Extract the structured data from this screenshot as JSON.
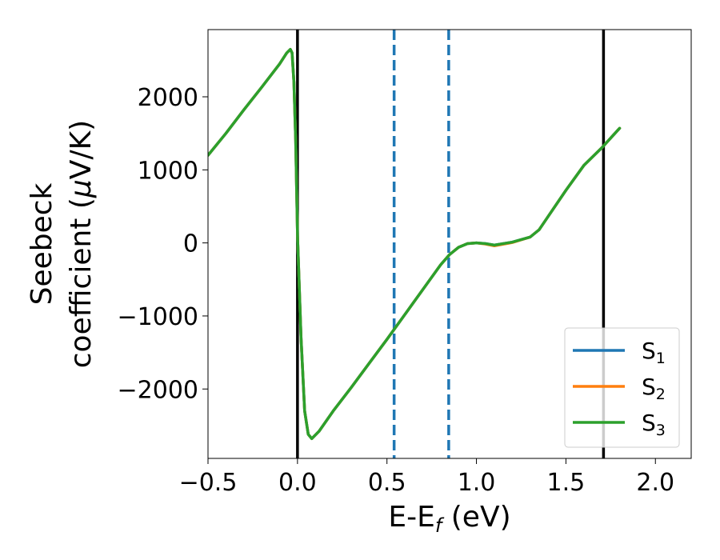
{
  "chart_data": {
    "type": "line",
    "xlabel": "E-E",
    "xlabel_sub": "f",
    "xlabel_unit": " (eV)",
    "ylabel_line1": "Seebeck",
    "ylabel_line2_pre": "coefficient  (",
    "ylabel_line2_mu": "μ",
    "ylabel_line2_post": "V/K)",
    "xlim": [
      -0.5,
      2.2
    ],
    "ylim": [
      -2950,
      2920
    ],
    "xticks": [
      -0.5,
      0.0,
      0.5,
      1.0,
      1.5,
      2.0
    ],
    "xtick_labels": [
      "−0.5",
      "0.0",
      "0.5",
      "1.0",
      "1.5",
      "2.0"
    ],
    "yticks": [
      -2000,
      -1000,
      0,
      1000,
      2000
    ],
    "ytick_labels": [
      "−2000",
      "−1000",
      "0",
      "1000",
      "2000"
    ],
    "grid": false,
    "legend_position": "lower-right",
    "series": [
      {
        "name": "S",
        "sub": "1",
        "color": "#1f77b4",
        "x": [
          -0.5,
          -0.4,
          -0.3,
          -0.2,
          -0.1,
          -0.06,
          -0.04,
          -0.03,
          -0.02,
          -0.01,
          0.0,
          0.02,
          0.04,
          0.06,
          0.08,
          0.12,
          0.2,
          0.3,
          0.4,
          0.5,
          0.6,
          0.7,
          0.8,
          0.85,
          0.9,
          0.95,
          1.0,
          1.05,
          1.1,
          1.2,
          1.3,
          1.35,
          1.4,
          1.5,
          1.6,
          1.7,
          1.8
        ],
        "y": [
          1200,
          1500,
          1820,
          2130,
          2450,
          2600,
          2650,
          2600,
          2200,
          1400,
          100,
          -1300,
          -2300,
          -2620,
          -2680,
          -2580,
          -2300,
          -1980,
          -1650,
          -1320,
          -980,
          -640,
          -300,
          -160,
          -60,
          -10,
          0,
          -10,
          -30,
          10,
          80,
          180,
          360,
          720,
          1060,
          1300,
          1570
        ]
      },
      {
        "name": "S",
        "sub": "2",
        "color": "#ff7f0e",
        "x": [
          -0.5,
          -0.4,
          -0.3,
          -0.2,
          -0.1,
          -0.06,
          -0.04,
          -0.03,
          -0.02,
          -0.01,
          0.0,
          0.02,
          0.04,
          0.06,
          0.08,
          0.12,
          0.2,
          0.3,
          0.4,
          0.5,
          0.6,
          0.7,
          0.8,
          0.85,
          0.9,
          0.95,
          1.0,
          1.05,
          1.1,
          1.2,
          1.3,
          1.35,
          1.4,
          1.5,
          1.6,
          1.7,
          1.8
        ],
        "y": [
          1200,
          1500,
          1820,
          2130,
          2450,
          2600,
          2650,
          2600,
          2200,
          1400,
          100,
          -1300,
          -2300,
          -2620,
          -2680,
          -2580,
          -2300,
          -1980,
          -1650,
          -1320,
          -980,
          -640,
          -300,
          -160,
          -60,
          -10,
          0,
          -15,
          -40,
          5,
          80,
          180,
          360,
          720,
          1060,
          1300,
          1570
        ]
      },
      {
        "name": "S",
        "sub": "3",
        "color": "#2ca02c",
        "x": [
          -0.5,
          -0.4,
          -0.3,
          -0.2,
          -0.1,
          -0.06,
          -0.04,
          -0.03,
          -0.02,
          -0.01,
          0.0,
          0.02,
          0.04,
          0.06,
          0.08,
          0.12,
          0.2,
          0.3,
          0.4,
          0.5,
          0.6,
          0.7,
          0.8,
          0.85,
          0.9,
          0.95,
          1.0,
          1.05,
          1.1,
          1.2,
          1.3,
          1.35,
          1.4,
          1.5,
          1.6,
          1.7,
          1.8
        ],
        "y": [
          1200,
          1500,
          1820,
          2130,
          2450,
          2600,
          2650,
          2600,
          2200,
          1400,
          100,
          -1300,
          -2300,
          -2620,
          -2680,
          -2580,
          -2300,
          -1980,
          -1650,
          -1320,
          -980,
          -640,
          -300,
          -160,
          -60,
          -10,
          0,
          -10,
          -30,
          10,
          80,
          180,
          360,
          720,
          1060,
          1300,
          1570
        ]
      }
    ],
    "vlines": [
      {
        "x": 0.0,
        "color": "#000000",
        "style": "solid"
      },
      {
        "x": 1.71,
        "color": "#000000",
        "style": "solid"
      },
      {
        "x": 0.54,
        "color": "#1f77b4",
        "style": "dashed"
      },
      {
        "x": 0.845,
        "color": "#1f77b4",
        "style": "dashed"
      }
    ]
  }
}
